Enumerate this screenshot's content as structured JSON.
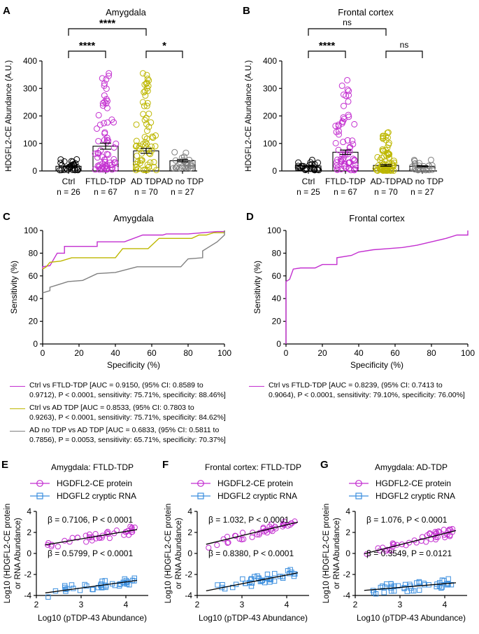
{
  "colors": {
    "magenta": "#c32fd0",
    "olive": "#bdb700",
    "gray": "#808080",
    "blue": "#3b8ede",
    "black": "#000000"
  },
  "panels": {
    "A": {
      "letter": "A",
      "title": "Amygdala",
      "ylabel": "HDGFL2-CE Abundance (A.U.)",
      "yticks": [
        "0",
        "100",
        "200",
        "300",
        "400"
      ],
      "groups": [
        {
          "name": "Ctrl",
          "n": "n = 26",
          "mean": 17,
          "sem": 2,
          "count": 26,
          "spread": [
            3,
            42
          ],
          "color": "black"
        },
        {
          "name": "FTLD-TDP",
          "n": "n = 67",
          "mean": 90,
          "sem": 11,
          "count": 67,
          "spread": [
            5,
            355
          ],
          "color": "magenta"
        },
        {
          "name": "AD TDP",
          "n": "n = 70",
          "mean": 73,
          "sem": 9,
          "count": 70,
          "spread": [
            3,
            355
          ],
          "color": "olive"
        },
        {
          "name": "AD no TDP",
          "n": "n = 27",
          "mean": 37,
          "sem": 4,
          "count": 27,
          "spread": [
            10,
            68
          ],
          "color": "gray"
        }
      ],
      "sig": [
        {
          "label": "****",
          "from": 0,
          "to": 2
        },
        {
          "label": "****",
          "from": 0,
          "to": 1
        },
        {
          "label": "*",
          "from": 2,
          "to": 3
        }
      ]
    },
    "B": {
      "letter": "B",
      "title": "Frontal cortex",
      "ylabel": "HDGFL2-CE Abundance (A.U.)",
      "yticks": [
        "0",
        "100",
        "200",
        "300",
        "400"
      ],
      "groups": [
        {
          "name": "Ctrl",
          "n": "n = 25",
          "mean": 18,
          "sem": 2,
          "count": 25,
          "spread": [
            3,
            40
          ],
          "color": "black"
        },
        {
          "name": "FTLD-TDP",
          "n": "n = 67",
          "mean": 68,
          "sem": 8,
          "count": 67,
          "spread": [
            3,
            330
          ],
          "color": "magenta"
        },
        {
          "name": "AD-TDP",
          "n": "n = 70",
          "mean": 20,
          "sem": 3,
          "count": 70,
          "spread": [
            1,
            140
          ],
          "color": "olive"
        },
        {
          "name": "AD no TDP",
          "n": "n = 27",
          "mean": 17,
          "sem": 2,
          "count": 27,
          "spread": [
            3,
            40
          ],
          "color": "gray"
        }
      ],
      "sig": [
        {
          "label": "ns",
          "from": 0,
          "to": 2
        },
        {
          "label": "****",
          "from": 0,
          "to": 1
        },
        {
          "label": "ns",
          "from": 2,
          "to": 3
        }
      ]
    },
    "C": {
      "letter": "C",
      "title": "Amygdala",
      "xlabel": "Specificity (%)",
      "ylabel": "Sensitivity (%)",
      "ticks": [
        "0",
        "20",
        "40",
        "60",
        "80",
        "100"
      ],
      "curves": [
        {
          "color": "magenta",
          "points": [
            [
              0,
              66
            ],
            [
              0,
              68
            ],
            [
              4,
              69
            ],
            [
              8,
              80
            ],
            [
              12,
              80
            ],
            [
              12,
              86
            ],
            [
              30,
              86
            ],
            [
              30,
              90
            ],
            [
              45,
              90
            ],
            [
              55,
              96
            ],
            [
              66,
              96
            ],
            [
              68,
              97
            ],
            [
              80,
              97
            ],
            [
              88,
              98
            ],
            [
              96,
              99
            ],
            [
              100,
              99
            ],
            [
              100,
              100
            ]
          ]
        },
        {
          "color": "olive",
          "points": [
            [
              0,
              66
            ],
            [
              2,
              68
            ],
            [
              4,
              72
            ],
            [
              10,
              73
            ],
            [
              16,
              76
            ],
            [
              40,
              76
            ],
            [
              44,
              84
            ],
            [
              58,
              84
            ],
            [
              64,
              93
            ],
            [
              82,
              93
            ],
            [
              86,
              96
            ],
            [
              90,
              96
            ],
            [
              94,
              98
            ],
            [
              100,
              98
            ],
            [
              100,
              100
            ]
          ]
        },
        {
          "color": "gray",
          "points": [
            [
              0,
              45
            ],
            [
              4,
              47
            ],
            [
              4,
              50
            ],
            [
              8,
              52
            ],
            [
              14,
              55
            ],
            [
              22,
              56
            ],
            [
              30,
              62
            ],
            [
              40,
              63
            ],
            [
              52,
              68
            ],
            [
              76,
              68
            ],
            [
              80,
              75
            ],
            [
              88,
              76
            ],
            [
              88,
              82
            ],
            [
              92,
              86
            ],
            [
              96,
              90
            ],
            [
              100,
              96
            ],
            [
              100,
              100
            ]
          ]
        }
      ],
      "legend": [
        {
          "color": "magenta",
          "line1": "Ctrl vs FTLD-TDP [AUC = 0.9150, (95% CI: 0.8589 to",
          "line2": "0.9712), P < 0.0001, sensitivity: 75.71%, specificity: 88.46%]"
        },
        {
          "color": "olive",
          "line1": "Ctrl vs AD TDP [AUC = 0.8533, (95% CI: 0.7803 to",
          "line2": "0.9263), P < 0.0001, sensitivity: 75.71%, specificity: 84.62%]"
        },
        {
          "color": "gray",
          "line1": "AD no TDP vs AD TDP [AUC = 0.6833, (95% CI: 0.5811 to",
          "line2": "0.7856), P = 0.0053, sensitivity: 65.71%, specificity: 70.37%]"
        }
      ]
    },
    "D": {
      "letter": "D",
      "title": "Frontal cortex",
      "xlabel": "Specificity (%)",
      "ylabel": "Sensitivity (%)",
      "ticks": [
        "0",
        "20",
        "40",
        "60",
        "80",
        "100"
      ],
      "curves": [
        {
          "color": "magenta",
          "points": [
            [
              0,
              0
            ],
            [
              0,
              55
            ],
            [
              2,
              57
            ],
            [
              4,
              66
            ],
            [
              8,
              67
            ],
            [
              16,
              67
            ],
            [
              20,
              70
            ],
            [
              28,
              70
            ],
            [
              28,
              76
            ],
            [
              36,
              78
            ],
            [
              40,
              81
            ],
            [
              48,
              83
            ],
            [
              56,
              84
            ],
            [
              64,
              85
            ],
            [
              72,
              87
            ],
            [
              80,
              90
            ],
            [
              88,
              93
            ],
            [
              94,
              96
            ],
            [
              100,
              96
            ],
            [
              100,
              100
            ]
          ]
        }
      ],
      "legend": [
        {
          "color": "magenta",
          "line1": "Ctrl vs FTLD-TDP [AUC = 0.8239, (95% CI: 0.7413 to",
          "line2": "0.9064), P < 0.0001, sensitivity: 79.10%, specificity: 76.00%]"
        }
      ]
    },
    "E": {
      "letter": "E",
      "title": "Amygdala: FTLD-TDP",
      "n_points": 40,
      "protein": {
        "label": "HGDFL2-CE protein",
        "stat": "β = 0.7106, P < 0.0001",
        "slope": 0.7106,
        "intercept": -0.75
      },
      "rna": {
        "label": "HDGFL2 cryptic RNA",
        "stat": "β = 0.5799, P < 0.0001",
        "slope": 0.5799,
        "intercept": -5.03
      }
    },
    "F": {
      "letter": "F",
      "title": "Frontal cortex: FTLD-TDP",
      "n_points": 40,
      "protein": {
        "label": "HGDFL2-CE protein",
        "stat": "β = 1.032, P < 0.0001",
        "slope": 1.032,
        "intercept": -1.4
      },
      "rna": {
        "label": "HDGFL2 cryptic RNA",
        "stat": "β = 0.8380, P < 0.0001",
        "slope": 0.838,
        "intercept": -5.4
      }
    },
    "G": {
      "letter": "G",
      "title": "Amygdala: AD-TDP",
      "n_points": 45,
      "protein": {
        "label": "HGDFL2-CE protein",
        "stat": "β = 1.076, P < 0.0001",
        "slope": 1.076,
        "intercept": -2.4
      },
      "rna": {
        "label": "HDGFL2 cryptic RNA",
        "stat": "β = 0.3549, P = 0.0121",
        "slope": 0.3549,
        "intercept": -4.3
      }
    }
  },
  "scatter_axes": {
    "ylabel_line1": "Log10 (HDGFL2-CE protein",
    "ylabel_line2": "or RNA Abundance)",
    "xlabel": "Log10 (pTDP-43 Abundance)",
    "xticks": [
      "2",
      "3",
      "4"
    ],
    "yticks": [
      "-4",
      "-2",
      "0",
      "2",
      "4"
    ]
  },
  "chart_data": [
    {
      "type": "bar",
      "title": "Amygdala",
      "categories": [
        "Ctrl",
        "FTLD-TDP",
        "AD TDP",
        "AD no TDP"
      ],
      "values": [
        17,
        90,
        73,
        37
      ],
      "ylabel": "HDGFL2-CE Abundance (A.U.)",
      "ylim": [
        0,
        400
      ]
    },
    {
      "type": "bar",
      "title": "Frontal cortex",
      "categories": [
        "Ctrl",
        "FTLD-TDP",
        "AD-TDP",
        "AD no TDP"
      ],
      "values": [
        18,
        68,
        20,
        17
      ],
      "ylabel": "HDGFL2-CE Abundance (A.U.)",
      "ylim": [
        0,
        400
      ]
    },
    {
      "type": "line",
      "title": "Amygdala",
      "xlabel": "Specificity (%)",
      "ylabel": "Sensitivity (%)",
      "xlim": [
        0,
        100
      ],
      "ylim": [
        0,
        100
      ]
    },
    {
      "type": "line",
      "title": "Frontal cortex",
      "xlabel": "Specificity (%)",
      "ylabel": "Sensitivity (%)",
      "xlim": [
        0,
        100
      ],
      "ylim": [
        0,
        100
      ]
    },
    {
      "type": "scatter",
      "title": "Amygdala: FTLD-TDP",
      "xlim": [
        2,
        4.5
      ],
      "ylim": [
        -4,
        4
      ]
    },
    {
      "type": "scatter",
      "title": "Frontal cortex: FTLD-TDP",
      "xlim": [
        2,
        4.5
      ],
      "ylim": [
        -4,
        4
      ]
    },
    {
      "type": "scatter",
      "title": "Amygdala: AD-TDP",
      "xlim": [
        2,
        4.5
      ],
      "ylim": [
        -4,
        4
      ]
    }
  ]
}
